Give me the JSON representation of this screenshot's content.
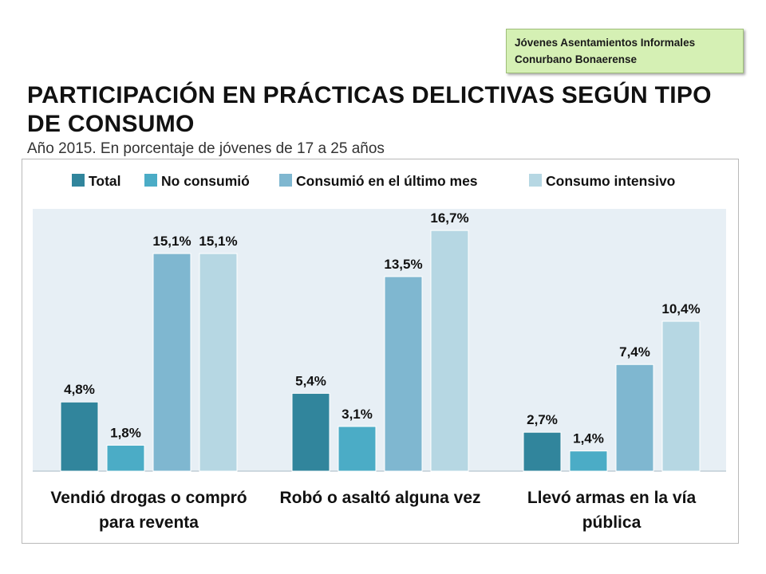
{
  "source_box": {
    "line1": "Jóvenes Asentamientos Informales",
    "line2": "Conurbano Bonaerense"
  },
  "chart_data": {
    "type": "bar",
    "title": "PARTICIPACIÓN EN PRÁCTICAS DELICTIVAS SEGÚN TIPO DE CONSUMO",
    "subtitle": "Año 2015.  En porcentaje de jóvenes de 17 a 25 años",
    "categories": [
      [
        "Vendió drogas o compró",
        "para reventa"
      ],
      [
        "Robó o asaltó alguna vez"
      ],
      [
        "Llevó armas en la vía",
        "pública"
      ]
    ],
    "series": [
      {
        "name": "Total",
        "values": [
          4.8,
          5.4,
          2.7
        ],
        "labels": [
          "4,8%",
          "5,4%",
          "2,7%"
        ],
        "color": "#31859c"
      },
      {
        "name": "No consumió",
        "values": [
          1.8,
          3.1,
          1.4
        ],
        "labels": [
          "1,8%",
          "3,1%",
          "1,4%"
        ],
        "color": "#4bacc6"
      },
      {
        "name": "Consumió en el último mes",
        "values": [
          15.1,
          13.5,
          7.4
        ],
        "labels": [
          "15,1%",
          "13,5%",
          "7,4%"
        ],
        "color": "#7fb7d0"
      },
      {
        "name": "Consumo intensivo",
        "values": [
          15.1,
          16.7,
          10.4
        ],
        "labels": [
          "15,1%",
          "16,7%",
          "10,4%"
        ],
        "color": "#b6d7e3"
      }
    ],
    "ylim": [
      0,
      18.2
    ],
    "legend_position": "top",
    "grid": false,
    "plot_background": "#e7eff5"
  }
}
